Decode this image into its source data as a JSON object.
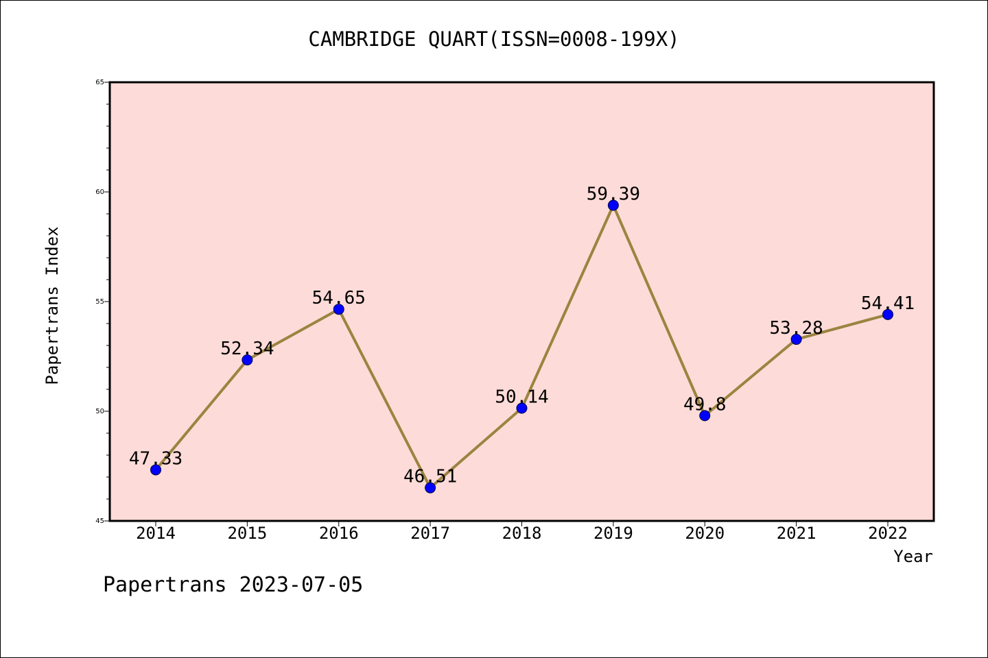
{
  "chart_data": {
    "type": "line",
    "title": "CAMBRIDGE QUART(ISSN=0008-199X)",
    "xlabel": "Year",
    "ylabel": "Papertrans Index",
    "categories": [
      "2014",
      "2015",
      "2016",
      "2017",
      "2018",
      "2019",
      "2020",
      "2021",
      "2022"
    ],
    "values": [
      47.33,
      52.34,
      54.65,
      46.51,
      50.14,
      59.39,
      49.8,
      53.28,
      54.41
    ],
    "data_labels": [
      "47.33",
      "52.34",
      "54.65",
      "46.51",
      "50.14",
      "59.39",
      "49.8",
      "53.28",
      "54.41"
    ],
    "ylim": [
      45,
      65
    ],
    "yticks": [
      45,
      50,
      55,
      60,
      65
    ],
    "ytick_labels": [
      "45",
      "50",
      "55",
      "60",
      "65"
    ],
    "grid": false,
    "colors": {
      "plot_background": "#fddbd8",
      "line": "#9a8440",
      "marker": "#0000ff"
    }
  },
  "footer": {
    "text": "Papertrans 2023-07-05"
  }
}
